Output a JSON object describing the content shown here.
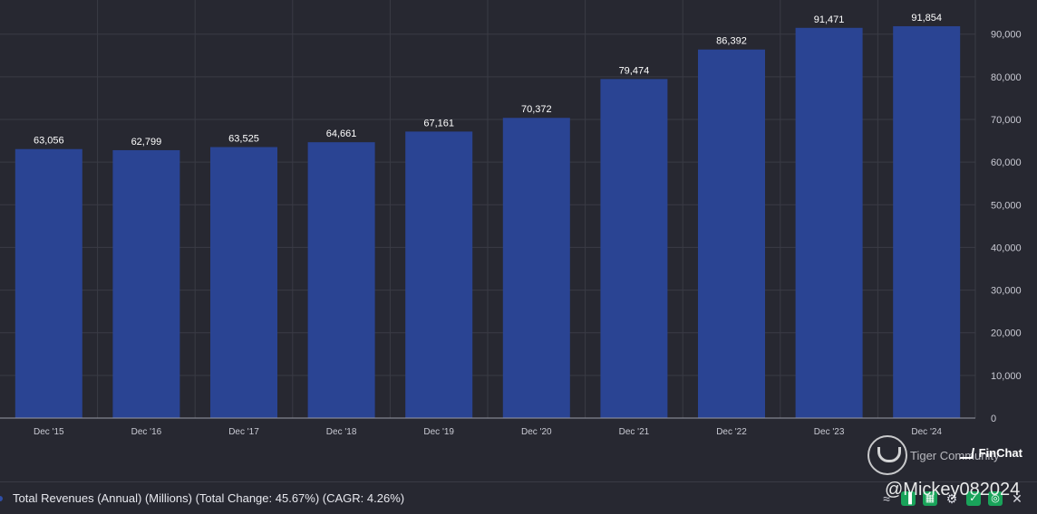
{
  "chart_data": {
    "type": "bar",
    "categories": [
      "Dec '15",
      "Dec '16",
      "Dec '17",
      "Dec '18",
      "Dec '19",
      "Dec '20",
      "Dec '21",
      "Dec '22",
      "Dec '23",
      "Dec '24"
    ],
    "values": [
      63056,
      62799,
      63525,
      64661,
      67161,
      70372,
      79474,
      86392,
      91471,
      91854
    ],
    "data_labels": [
      "63,056",
      "62,799",
      "63,525",
      "64,661",
      "67,161",
      "70,372",
      "79,474",
      "86,392",
      "91,471",
      "91,854"
    ],
    "ylim": [
      0,
      98000
    ],
    "yticks": [
      0,
      10000,
      20000,
      30000,
      40000,
      50000,
      60000,
      70000,
      80000,
      90000
    ],
    "ytick_labels": [
      "0",
      "10,000",
      "20,000",
      "30,000",
      "40,000",
      "50,000",
      "60,000",
      "70,000",
      "80,000",
      "90,000"
    ],
    "y_axis_side": "right",
    "grid": true,
    "bar_color": "#2a4493",
    "background_color": "#272831",
    "grid_color": "#3a3b45"
  },
  "legend": {
    "text": "Total Revenues (Annual) (Millions) (Total Change: 45.67%) (CAGR: 4.26%)",
    "dot_color": "#2f4fa8"
  },
  "toolbar": {
    "icons": [
      "chart-line-icon",
      "bar-chart-icon",
      "table-icon",
      "gear-icon",
      "check-icon",
      "target-icon",
      "close-icon"
    ]
  },
  "brand": {
    "name": "FinChat"
  },
  "watermark": {
    "community": "Tiger Community",
    "handle": "@Mickey082024"
  }
}
